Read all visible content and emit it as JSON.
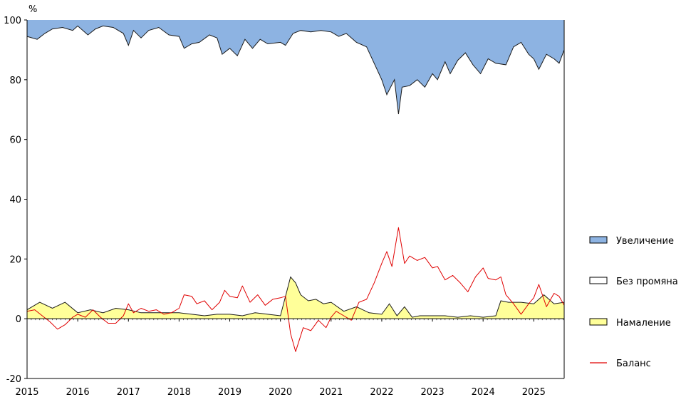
{
  "chart_data": {
    "type": "area",
    "title": "",
    "ylabel": "%",
    "xlabel": "",
    "ylim": [
      -20,
      100
    ],
    "yticks": [
      -20,
      0,
      20,
      40,
      60,
      80,
      100
    ],
    "xlim": [
      2015.0,
      2025.6
    ],
    "xtick_labels": [
      "2015",
      "2016",
      "2017",
      "2018",
      "2019",
      "2020",
      "2021",
      "2022",
      "2023",
      "2024",
      "2025"
    ],
    "grid": false,
    "legend_position": "right",
    "colors": {
      "increase": "#8db3e2",
      "no_change": "#ffffff",
      "decrease": "#ffff99",
      "balance": "#e00000",
      "outline": "#1a1a1a"
    },
    "series": [
      {
        "name": "Намаление",
        "kind": "stacked-area-bottom",
        "points": [
          [
            2015.0,
            3.0
          ],
          [
            2015.25,
            5.5
          ],
          [
            2015.5,
            3.5
          ],
          [
            2015.75,
            5.5
          ],
          [
            2016.0,
            2.0
          ],
          [
            2016.25,
            3.0
          ],
          [
            2016.5,
            2.0
          ],
          [
            2016.75,
            3.5
          ],
          [
            2017.0,
            3.0
          ],
          [
            2017.25,
            2.0
          ],
          [
            2017.5,
            2.0
          ],
          [
            2017.75,
            2.0
          ],
          [
            2018.0,
            2.0
          ],
          [
            2018.25,
            1.5
          ],
          [
            2018.5,
            1.0
          ],
          [
            2018.75,
            1.5
          ],
          [
            2019.0,
            1.5
          ],
          [
            2019.25,
            1.0
          ],
          [
            2019.5,
            2.0
          ],
          [
            2019.75,
            1.5
          ],
          [
            2020.0,
            1.0
          ],
          [
            2020.2,
            14.0
          ],
          [
            2020.3,
            12.0
          ],
          [
            2020.4,
            8.0
          ],
          [
            2020.55,
            6.0
          ],
          [
            2020.7,
            6.5
          ],
          [
            2020.85,
            5.0
          ],
          [
            2021.0,
            5.5
          ],
          [
            2021.25,
            2.5
          ],
          [
            2021.5,
            4.0
          ],
          [
            2021.75,
            2.0
          ],
          [
            2022.0,
            1.5
          ],
          [
            2022.15,
            5.0
          ],
          [
            2022.3,
            1.0
          ],
          [
            2022.45,
            4.0
          ],
          [
            2022.6,
            0.5
          ],
          [
            2022.75,
            1.0
          ],
          [
            2023.0,
            1.0
          ],
          [
            2023.25,
            1.0
          ],
          [
            2023.5,
            0.5
          ],
          [
            2023.75,
            1.0
          ],
          [
            2024.0,
            0.5
          ],
          [
            2024.25,
            1.0
          ],
          [
            2024.35,
            6.0
          ],
          [
            2024.5,
            5.5
          ],
          [
            2024.75,
            5.5
          ],
          [
            2025.0,
            5.0
          ],
          [
            2025.2,
            8.0
          ],
          [
            2025.4,
            5.0
          ],
          [
            2025.6,
            5.5
          ]
        ]
      },
      {
        "name": "Без промяна",
        "kind": "stacked-area-middle",
        "points": []
      },
      {
        "name": "Увеличение",
        "kind": "stacked-area-top-boundary",
        "points": [
          [
            2015.0,
            94.5
          ],
          [
            2015.2,
            93.5
          ],
          [
            2015.35,
            95.5
          ],
          [
            2015.5,
            97.0
          ],
          [
            2015.7,
            97.5
          ],
          [
            2015.9,
            96.5
          ],
          [
            2016.0,
            98.0
          ],
          [
            2016.2,
            95.0
          ],
          [
            2016.35,
            97.0
          ],
          [
            2016.5,
            98.0
          ],
          [
            2016.7,
            97.5
          ],
          [
            2016.9,
            95.5
          ],
          [
            2017.0,
            91.5
          ],
          [
            2017.1,
            96.5
          ],
          [
            2017.25,
            94.0
          ],
          [
            2017.4,
            96.5
          ],
          [
            2017.6,
            97.5
          ],
          [
            2017.8,
            95.0
          ],
          [
            2018.0,
            94.5
          ],
          [
            2018.1,
            90.5
          ],
          [
            2018.25,
            92.0
          ],
          [
            2018.4,
            92.5
          ],
          [
            2018.6,
            95.0
          ],
          [
            2018.75,
            94.0
          ],
          [
            2018.85,
            88.5
          ],
          [
            2019.0,
            90.5
          ],
          [
            2019.15,
            88.0
          ],
          [
            2019.3,
            93.5
          ],
          [
            2019.45,
            90.5
          ],
          [
            2019.6,
            93.5
          ],
          [
            2019.75,
            92.0
          ],
          [
            2020.0,
            92.5
          ],
          [
            2020.1,
            91.5
          ],
          [
            2020.25,
            95.5
          ],
          [
            2020.4,
            96.5
          ],
          [
            2020.6,
            96.0
          ],
          [
            2020.8,
            96.5
          ],
          [
            2021.0,
            96.0
          ],
          [
            2021.15,
            94.5
          ],
          [
            2021.3,
            95.5
          ],
          [
            2021.5,
            92.5
          ],
          [
            2021.7,
            91.0
          ],
          [
            2021.85,
            85.5
          ],
          [
            2022.0,
            80.0
          ],
          [
            2022.1,
            75.0
          ],
          [
            2022.25,
            80.0
          ],
          [
            2022.33,
            68.5
          ],
          [
            2022.4,
            77.5
          ],
          [
            2022.55,
            78.0
          ],
          [
            2022.7,
            80.0
          ],
          [
            2022.85,
            77.5
          ],
          [
            2023.0,
            82.0
          ],
          [
            2023.1,
            80.0
          ],
          [
            2023.25,
            86.0
          ],
          [
            2023.35,
            82.0
          ],
          [
            2023.5,
            86.5
          ],
          [
            2023.65,
            89.0
          ],
          [
            2023.8,
            85.0
          ],
          [
            2023.95,
            82.0
          ],
          [
            2024.1,
            87.0
          ],
          [
            2024.25,
            85.5
          ],
          [
            2024.45,
            85.0
          ],
          [
            2024.6,
            91.0
          ],
          [
            2024.75,
            92.5
          ],
          [
            2024.9,
            88.5
          ],
          [
            2025.0,
            87.0
          ],
          [
            2025.1,
            83.5
          ],
          [
            2025.25,
            88.5
          ],
          [
            2025.4,
            87.0
          ],
          [
            2025.5,
            85.5
          ],
          [
            2025.6,
            90.0
          ]
        ]
      },
      {
        "name": "Баланс",
        "kind": "line",
        "points": [
          [
            2015.0,
            2.5
          ],
          [
            2015.15,
            3.0
          ],
          [
            2015.3,
            1.0
          ],
          [
            2015.45,
            -1.0
          ],
          [
            2015.6,
            -3.5
          ],
          [
            2015.75,
            -2.0
          ],
          [
            2015.9,
            0.5
          ],
          [
            2016.0,
            1.5
          ],
          [
            2016.15,
            0.5
          ],
          [
            2016.3,
            3.0
          ],
          [
            2016.45,
            0.5
          ],
          [
            2016.6,
            -1.5
          ],
          [
            2016.75,
            -1.5
          ],
          [
            2016.9,
            1.0
          ],
          [
            2017.0,
            5.0
          ],
          [
            2017.1,
            2.0
          ],
          [
            2017.25,
            3.5
          ],
          [
            2017.4,
            2.5
          ],
          [
            2017.55,
            3.0
          ],
          [
            2017.7,
            1.5
          ],
          [
            2017.85,
            2.0
          ],
          [
            2018.0,
            3.5
          ],
          [
            2018.1,
            8.0
          ],
          [
            2018.25,
            7.5
          ],
          [
            2018.35,
            5.0
          ],
          [
            2018.5,
            6.0
          ],
          [
            2018.65,
            3.0
          ],
          [
            2018.8,
            5.5
          ],
          [
            2018.9,
            9.5
          ],
          [
            2019.0,
            7.5
          ],
          [
            2019.15,
            7.0
          ],
          [
            2019.25,
            11.0
          ],
          [
            2019.4,
            5.5
          ],
          [
            2019.55,
            8.0
          ],
          [
            2019.7,
            4.5
          ],
          [
            2019.85,
            6.5
          ],
          [
            2020.0,
            7.0
          ],
          [
            2020.1,
            7.5
          ],
          [
            2020.2,
            -5.0
          ],
          [
            2020.3,
            -11.0
          ],
          [
            2020.45,
            -3.0
          ],
          [
            2020.6,
            -4.0
          ],
          [
            2020.75,
            -0.5
          ],
          [
            2020.9,
            -3.0
          ],
          [
            2021.0,
            0.5
          ],
          [
            2021.1,
            2.5
          ],
          [
            2021.25,
            1.0
          ],
          [
            2021.4,
            -0.5
          ],
          [
            2021.55,
            5.5
          ],
          [
            2021.7,
            6.5
          ],
          [
            2021.85,
            12.0
          ],
          [
            2022.0,
            18.5
          ],
          [
            2022.1,
            22.5
          ],
          [
            2022.2,
            17.5
          ],
          [
            2022.33,
            30.5
          ],
          [
            2022.45,
            18.5
          ],
          [
            2022.55,
            21.0
          ],
          [
            2022.7,
            19.5
          ],
          [
            2022.85,
            20.5
          ],
          [
            2023.0,
            17.0
          ],
          [
            2023.1,
            17.5
          ],
          [
            2023.25,
            13.0
          ],
          [
            2023.4,
            14.5
          ],
          [
            2023.55,
            12.0
          ],
          [
            2023.7,
            9.0
          ],
          [
            2023.85,
            14.0
          ],
          [
            2024.0,
            17.0
          ],
          [
            2024.1,
            13.5
          ],
          [
            2024.25,
            13.0
          ],
          [
            2024.35,
            14.0
          ],
          [
            2024.45,
            8.0
          ],
          [
            2024.6,
            5.0
          ],
          [
            2024.75,
            1.5
          ],
          [
            2024.9,
            5.0
          ],
          [
            2025.0,
            7.0
          ],
          [
            2025.1,
            11.5
          ],
          [
            2025.25,
            4.0
          ],
          [
            2025.4,
            8.5
          ],
          [
            2025.5,
            7.5
          ],
          [
            2025.6,
            4.5
          ]
        ]
      }
    ]
  }
}
